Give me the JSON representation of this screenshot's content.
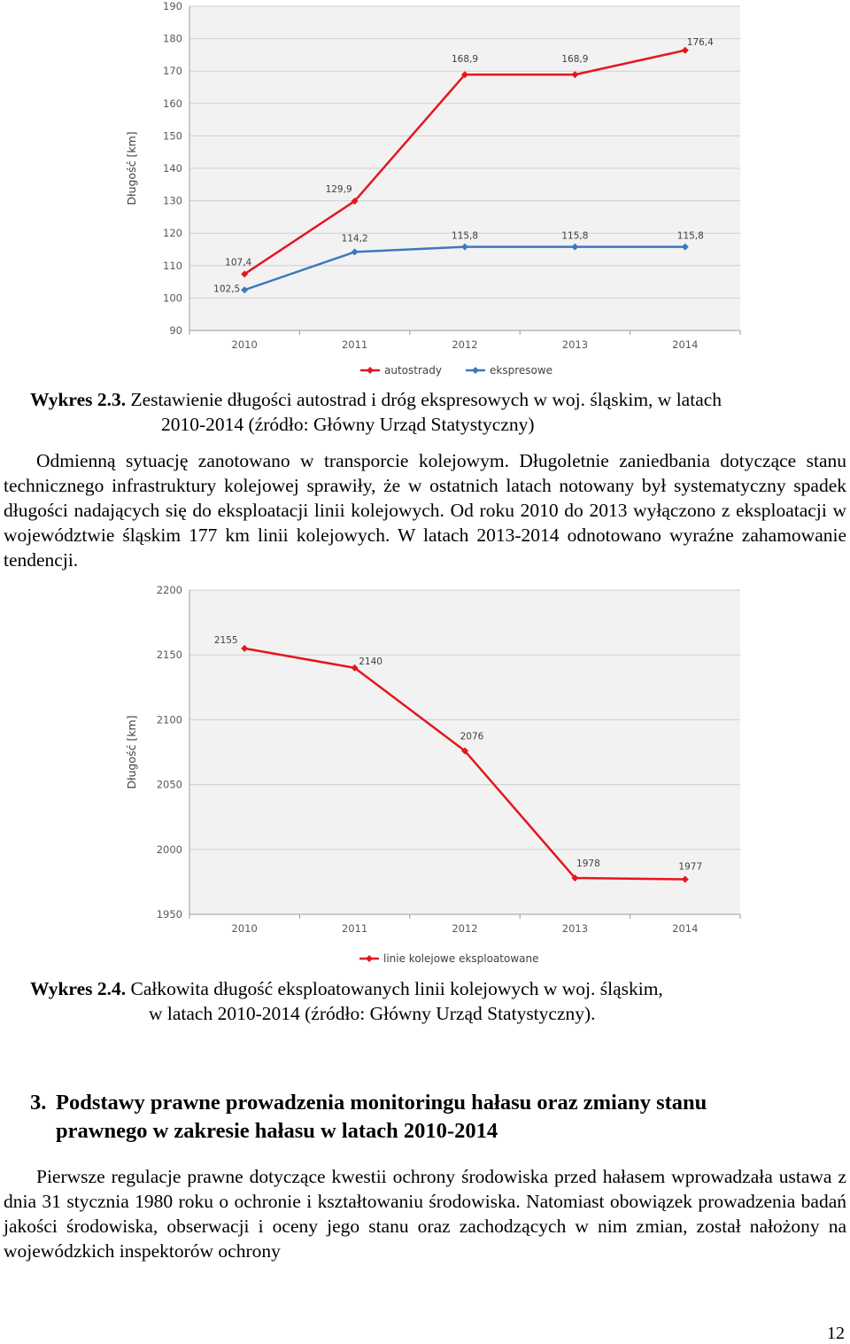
{
  "charts": [
    {
      "type": "line",
      "ylabel": "Długość [km]",
      "ylim": [
        90,
        190
      ],
      "yticks": [
        90,
        100,
        110,
        120,
        130,
        140,
        150,
        160,
        170,
        180,
        190
      ],
      "categories": [
        "2010",
        "2011",
        "2012",
        "2013",
        "2014"
      ],
      "series": [
        {
          "name": "autostrady",
          "color": "#e3171d",
          "values": [
            107.4,
            129.9,
            168.9,
            168.9,
            176.4
          ],
          "labels": [
            "107,4",
            "129,9",
            "168,9",
            "168,9",
            "176,4"
          ]
        },
        {
          "name": "ekspresowe",
          "color": "#3b79c0",
          "values": [
            102.5,
            114.2,
            115.8,
            115.8,
            115.8
          ],
          "labels": [
            "102,5",
            "114,2",
            "115,8",
            "115,8",
            "115,8"
          ]
        }
      ],
      "grid": true,
      "legend": "bottom"
    },
    {
      "type": "line",
      "ylabel": "Długość [km]",
      "ylim": [
        1950,
        2200
      ],
      "yticks": [
        1950,
        2000,
        2050,
        2100,
        2150,
        2200
      ],
      "categories": [
        "2010",
        "2011",
        "2012",
        "2013",
        "2014"
      ],
      "series": [
        {
          "name": "linie kolejowe eksploatowane",
          "color": "#e3171d",
          "values": [
            2155,
            2140,
            2076,
            1978,
            1977
          ],
          "labels": [
            "2155",
            "2140",
            "2076",
            "1978",
            "1977"
          ]
        }
      ],
      "grid": true,
      "legend": "bottom"
    }
  ],
  "chart_data": [
    {
      "type": "line",
      "categories": [
        "2010",
        "2011",
        "2012",
        "2013",
        "2014"
      ],
      "series": [
        {
          "name": "autostrady",
          "values": [
            107.4,
            129.9,
            168.9,
            168.9,
            176.4
          ]
        },
        {
          "name": "ekspresowe",
          "values": [
            102.5,
            114.2,
            115.8,
            115.8,
            115.8
          ]
        }
      ],
      "ylabel": "Długość [km]",
      "ylim": [
        90,
        190
      ]
    },
    {
      "type": "line",
      "categories": [
        "2010",
        "2011",
        "2012",
        "2013",
        "2014"
      ],
      "series": [
        {
          "name": "linie kolejowe eksploatowane",
          "values": [
            2155,
            2140,
            2076,
            1978,
            1977
          ]
        }
      ],
      "ylabel": "Długość [km]",
      "ylim": [
        1950,
        2200
      ]
    }
  ],
  "caption1": {
    "label": "Wykres 2.3.",
    "line1": "Zestawienie długości autostrad i dróg ekspresowych w woj. śląskim, w latach",
    "line2": "2010-2014 (źródło: Główny Urząd Statystyczny)"
  },
  "paragraph1": "Odmienną sytuację zanotowano w transporcie kolejowym. Długoletnie zaniedbania dotyczące stanu technicznego infrastruktury kolejowej sprawiły, że w ostatnich latach notowany był systematyczny spadek długości nadających się do eksploatacji linii kolejowych. Od roku 2010 do 2013 wyłączono z eksploatacji w województwie śląskim 177 km linii kolejowych. W latach 2013-2014 odnotowano wyraźne zahamowanie tendencji.",
  "caption2": {
    "label": "Wykres 2.4.",
    "line1": "Całkowita długość eksploatowanych linii kolejowych w woj. śląskim,",
    "line2": "w latach 2010-2014 (źródło: Główny Urząd Statystyczny)."
  },
  "heading": {
    "number": "3.",
    "line1": "Podstawy prawne prowadzenia monitoringu hałasu oraz zmiany stanu",
    "line2": "prawnego w zakresie hałasu w latach 2010-2014"
  },
  "paragraph2": "Pierwsze regulacje prawne dotyczące kwestii ochrony środowiska przed hałasem wprowadzała ustawa z dnia 31 stycznia 1980 roku o ochronie i kształtowaniu środowiska. Natomiast obowiązek prowadzenia badań jakości środowiska, obserwacji i oceny jego stanu oraz zachodzących w nim zmian, został nałożony na wojewódzkich inspektorów ochrony",
  "page_number": "12"
}
